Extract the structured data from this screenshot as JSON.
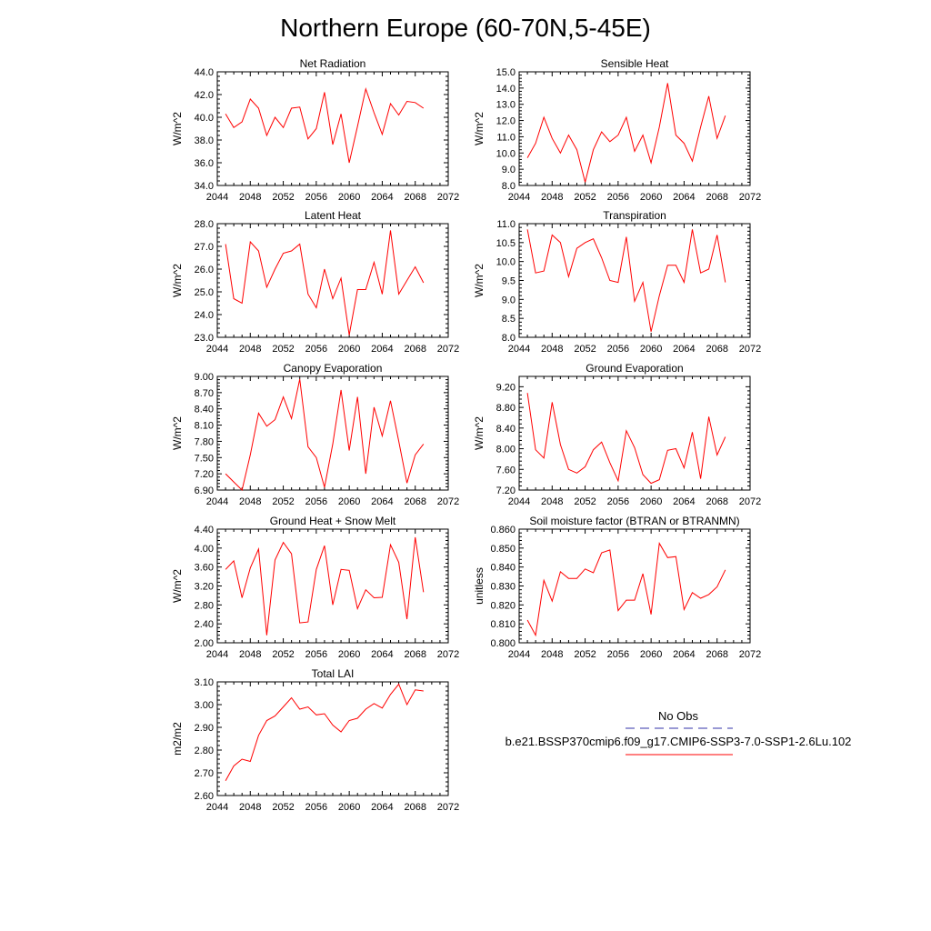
{
  "title": "Northern Europe (60-70N,5-45E)",
  "legend": {
    "obs_label": "No Obs",
    "obs_color": "#3333aa",
    "model_label": "b.e21.BSSP370cmip6.f09_g17.CMIP6-SSP3-7.0-SSP1-2.6Lu.102",
    "model_color": "#ff0000"
  },
  "chart_data": [
    {
      "type": "line",
      "title": "Net Radiation",
      "ylabel": "W/m^2",
      "xlim": [
        2044,
        2072
      ],
      "xticks": [
        2044,
        2048,
        2052,
        2056,
        2060,
        2064,
        2068,
        2072
      ],
      "xtick_labels": [
        "2044",
        "2048",
        "2052",
        "2056",
        "2060",
        "2064",
        "2068",
        "2072"
      ],
      "ylim": [
        34.0,
        44.0
      ],
      "yticks": [
        34,
        36,
        38,
        40,
        42,
        44
      ],
      "ytick_labels": [
        "34.0",
        "36.0",
        "38.0",
        "40.0",
        "42.0",
        "44.0"
      ],
      "x": [
        2045,
        2046,
        2047,
        2048,
        2049,
        2050,
        2051,
        2052,
        2053,
        2054,
        2055,
        2056,
        2057,
        2058,
        2059,
        2060,
        2061,
        2062,
        2063,
        2064,
        2065,
        2066,
        2067,
        2068,
        2069
      ],
      "values": [
        40.3,
        39.1,
        39.6,
        41.6,
        40.8,
        38.4,
        40.0,
        39.1,
        40.8,
        40.9,
        38.1,
        39.0,
        42.2,
        37.6,
        40.3,
        36.0,
        39.2,
        42.5,
        40.4,
        38.5,
        41.2,
        40.2,
        41.4,
        41.3,
        40.8
      ]
    },
    {
      "type": "line",
      "title": "Sensible Heat",
      "ylabel": "W/m^2",
      "xlim": [
        2044,
        2072
      ],
      "xticks": [
        2044,
        2048,
        2052,
        2056,
        2060,
        2064,
        2068,
        2072
      ],
      "xtick_labels": [
        "2044",
        "2048",
        "2052",
        "2056",
        "2060",
        "2064",
        "2068",
        "2072"
      ],
      "ylim": [
        8.0,
        15.0
      ],
      "yticks": [
        8,
        9,
        10,
        11,
        12,
        13,
        14,
        15
      ],
      "ytick_labels": [
        "8.0",
        "9.0",
        "10.0",
        "11.0",
        "12.0",
        "13.0",
        "14.0",
        "15.0"
      ],
      "x": [
        2045,
        2046,
        2047,
        2048,
        2049,
        2050,
        2051,
        2052,
        2053,
        2054,
        2055,
        2056,
        2057,
        2058,
        2059,
        2060,
        2061,
        2062,
        2063,
        2064,
        2065,
        2066,
        2067,
        2068,
        2069
      ],
      "values": [
        9.7,
        10.6,
        12.2,
        10.9,
        10.0,
        11.1,
        10.2,
        8.2,
        10.2,
        11.3,
        10.7,
        11.1,
        12.2,
        10.1,
        11.1,
        9.4,
        11.6,
        14.3,
        11.1,
        10.6,
        9.5,
        11.6,
        13.5,
        10.9,
        12.3
      ]
    },
    {
      "type": "line",
      "title": "Latent Heat",
      "ylabel": "W/m^2",
      "xlim": [
        2044,
        2072
      ],
      "xticks": [
        2044,
        2048,
        2052,
        2056,
        2060,
        2064,
        2068,
        2072
      ],
      "xtick_labels": [
        "2044",
        "2048",
        "2052",
        "2056",
        "2060",
        "2064",
        "2068",
        "2072"
      ],
      "ylim": [
        23.0,
        28.0
      ],
      "yticks": [
        23,
        24,
        25,
        26,
        27,
        28
      ],
      "ytick_labels": [
        "23.0",
        "24.0",
        "25.0",
        "26.0",
        "27.0",
        "28.0"
      ],
      "x": [
        2045,
        2046,
        2047,
        2048,
        2049,
        2050,
        2051,
        2052,
        2053,
        2054,
        2055,
        2056,
        2057,
        2058,
        2059,
        2060,
        2061,
        2062,
        2063,
        2064,
        2065,
        2066,
        2067,
        2068,
        2069
      ],
      "values": [
        27.1,
        24.7,
        24.5,
        27.2,
        26.8,
        25.2,
        26.0,
        26.7,
        26.8,
        27.1,
        24.9,
        24.3,
        26.0,
        24.7,
        25.6,
        23.1,
        25.1,
        25.1,
        26.3,
        24.9,
        27.7,
        24.9,
        25.5,
        26.1,
        25.4
      ]
    },
    {
      "type": "line",
      "title": "Transpiration",
      "ylabel": "W/m^2",
      "xlim": [
        2044,
        2072
      ],
      "xticks": [
        2044,
        2048,
        2052,
        2056,
        2060,
        2064,
        2068,
        2072
      ],
      "xtick_labels": [
        "2044",
        "2048",
        "2052",
        "2056",
        "2060",
        "2064",
        "2068",
        "2072"
      ],
      "ylim": [
        8.0,
        11.0
      ],
      "yticks": [
        8.0,
        8.5,
        9.0,
        9.5,
        10.0,
        10.5,
        11.0
      ],
      "ytick_labels": [
        "8.0",
        "8.5",
        "9.0",
        "9.5",
        "10.0",
        "10.5",
        "11.0"
      ],
      "x": [
        2045,
        2046,
        2047,
        2048,
        2049,
        2050,
        2051,
        2052,
        2053,
        2054,
        2055,
        2056,
        2057,
        2058,
        2059,
        2060,
        2061,
        2062,
        2063,
        2064,
        2065,
        2066,
        2067,
        2068,
        2069
      ],
      "values": [
        10.85,
        9.7,
        9.75,
        10.7,
        10.5,
        9.6,
        10.35,
        10.5,
        10.6,
        10.1,
        9.5,
        9.45,
        10.65,
        8.95,
        9.45,
        8.15,
        9.1,
        9.9,
        9.9,
        9.45,
        10.85,
        9.7,
        9.8,
        10.7,
        9.45
      ]
    },
    {
      "type": "line",
      "title": "Canopy Evaporation",
      "ylabel": "W/m^2",
      "xlim": [
        2044,
        2072
      ],
      "xticks": [
        2044,
        2048,
        2052,
        2056,
        2060,
        2064,
        2068,
        2072
      ],
      "xtick_labels": [
        "2044",
        "2048",
        "2052",
        "2056",
        "2060",
        "2064",
        "2068",
        "2072"
      ],
      "ylim": [
        6.9,
        9.0
      ],
      "yticks": [
        6.9,
        7.2,
        7.5,
        7.8,
        8.1,
        8.4,
        8.7,
        9.0
      ],
      "ytick_labels": [
        "6.90",
        "7.20",
        "7.50",
        "7.80",
        "8.10",
        "8.40",
        "8.70",
        "9.00"
      ],
      "x": [
        2045,
        2046,
        2047,
        2048,
        2049,
        2050,
        2051,
        2052,
        2053,
        2054,
        2055,
        2056,
        2057,
        2058,
        2059,
        2060,
        2061,
        2062,
        2063,
        2064,
        2065,
        2066,
        2067,
        2068,
        2069
      ],
      "values": [
        7.2,
        7.05,
        6.9,
        7.55,
        8.32,
        8.08,
        8.2,
        8.62,
        8.22,
        8.95,
        7.7,
        7.5,
        6.95,
        7.75,
        8.75,
        7.63,
        8.62,
        7.2,
        8.43,
        7.9,
        8.55,
        7.8,
        7.03,
        7.55,
        7.75
      ]
    },
    {
      "type": "line",
      "title": "Ground Evaporation",
      "ylabel": "W/m^2",
      "xlim": [
        2044,
        2072
      ],
      "xticks": [
        2044,
        2048,
        2052,
        2056,
        2060,
        2064,
        2068,
        2072
      ],
      "xtick_labels": [
        "2044",
        "2048",
        "2052",
        "2056",
        "2060",
        "2064",
        "2068",
        "2072"
      ],
      "ylim": [
        7.2,
        9.4
      ],
      "yticks": [
        7.2,
        7.6,
        8.0,
        8.4,
        8.8,
        9.2
      ],
      "ytick_labels": [
        "7.20",
        "7.60",
        "8.00",
        "8.40",
        "8.80",
        "9.20"
      ],
      "x": [
        2045,
        2046,
        2047,
        2048,
        2049,
        2050,
        2051,
        2052,
        2053,
        2054,
        2055,
        2056,
        2057,
        2058,
        2059,
        2060,
        2061,
        2062,
        2063,
        2064,
        2065,
        2066,
        2067,
        2068,
        2069
      ],
      "values": [
        9.08,
        7.98,
        7.82,
        8.9,
        8.08,
        7.6,
        7.53,
        7.65,
        7.98,
        8.13,
        7.73,
        7.38,
        8.35,
        8.02,
        7.5,
        7.33,
        7.4,
        7.97,
        8.0,
        7.63,
        8.32,
        7.42,
        8.62,
        7.88,
        8.23
      ]
    },
    {
      "type": "line",
      "title": "Ground Heat + Snow Melt",
      "ylabel": "W/m^2",
      "xlim": [
        2044,
        2072
      ],
      "xticks": [
        2044,
        2048,
        2052,
        2056,
        2060,
        2064,
        2068,
        2072
      ],
      "xtick_labels": [
        "2044",
        "2048",
        "2052",
        "2056",
        "2060",
        "2064",
        "2068",
        "2072"
      ],
      "ylim": [
        2.0,
        4.4
      ],
      "yticks": [
        2.0,
        2.4,
        2.8,
        3.2,
        3.6,
        4.0,
        4.4
      ],
      "ytick_labels": [
        "2.00",
        "2.40",
        "2.80",
        "3.20",
        "3.60",
        "4.00",
        "4.40"
      ],
      "x": [
        2045,
        2046,
        2047,
        2048,
        2049,
        2050,
        2051,
        2052,
        2053,
        2054,
        2055,
        2056,
        2057,
        2058,
        2059,
        2060,
        2061,
        2062,
        2063,
        2064,
        2065,
        2066,
        2067,
        2068,
        2069
      ],
      "values": [
        3.55,
        3.73,
        2.95,
        3.58,
        3.98,
        2.16,
        3.75,
        4.12,
        3.88,
        2.42,
        2.44,
        3.55,
        4.05,
        2.8,
        3.55,
        3.53,
        2.72,
        3.12,
        2.95,
        2.96,
        4.07,
        3.7,
        2.5,
        4.23,
        3.07
      ]
    },
    {
      "type": "line",
      "title": "Soil moisture factor (BTRAN or BTRANMN)",
      "ylabel": "unitless",
      "xlim": [
        2044,
        2072
      ],
      "xticks": [
        2044,
        2048,
        2052,
        2056,
        2060,
        2064,
        2068,
        2072
      ],
      "xtick_labels": [
        "2044",
        "2048",
        "2052",
        "2056",
        "2060",
        "2064",
        "2068",
        "2072"
      ],
      "ylim": [
        0.8,
        0.86
      ],
      "yticks": [
        0.8,
        0.81,
        0.82,
        0.83,
        0.84,
        0.85,
        0.86
      ],
      "ytick_labels": [
        "0.800",
        "0.810",
        "0.820",
        "0.830",
        "0.840",
        "0.850",
        "0.860"
      ],
      "x": [
        2045,
        2046,
        2047,
        2048,
        2049,
        2050,
        2051,
        2052,
        2053,
        2054,
        2055,
        2056,
        2057,
        2058,
        2059,
        2060,
        2061,
        2062,
        2063,
        2064,
        2065,
        2066,
        2067,
        2068,
        2069
      ],
      "values": [
        0.812,
        0.804,
        0.833,
        0.822,
        0.8375,
        0.834,
        0.834,
        0.839,
        0.837,
        0.8475,
        0.849,
        0.817,
        0.8225,
        0.8225,
        0.8365,
        0.815,
        0.8525,
        0.845,
        0.8455,
        0.8175,
        0.8265,
        0.8235,
        0.8255,
        0.8295,
        0.8385
      ]
    },
    {
      "type": "line",
      "title": "Total LAI",
      "ylabel": "m2/m2",
      "xlim": [
        2044,
        2072
      ],
      "xticks": [
        2044,
        2048,
        2052,
        2056,
        2060,
        2064,
        2068,
        2072
      ],
      "xtick_labels": [
        "2044",
        "2048",
        "2052",
        "2056",
        "2060",
        "2064",
        "2068",
        "2072"
      ],
      "ylim": [
        2.6,
        3.1
      ],
      "yticks": [
        2.6,
        2.7,
        2.8,
        2.9,
        3.0,
        3.1
      ],
      "ytick_labels": [
        "2.60",
        "2.70",
        "2.80",
        "2.90",
        "3.00",
        "3.10"
      ],
      "x": [
        2045,
        2046,
        2047,
        2048,
        2049,
        2050,
        2051,
        2052,
        2053,
        2054,
        2055,
        2056,
        2057,
        2058,
        2059,
        2060,
        2061,
        2062,
        2063,
        2064,
        2065,
        2066,
        2067,
        2068,
        2069
      ],
      "values": [
        2.665,
        2.73,
        2.76,
        2.75,
        2.865,
        2.93,
        2.95,
        2.99,
        3.03,
        2.98,
        2.99,
        2.955,
        2.96,
        2.91,
        2.88,
        2.93,
        2.94,
        2.98,
        3.005,
        2.985,
        3.045,
        3.09,
        3.0,
        3.065,
        3.06
      ]
    }
  ]
}
